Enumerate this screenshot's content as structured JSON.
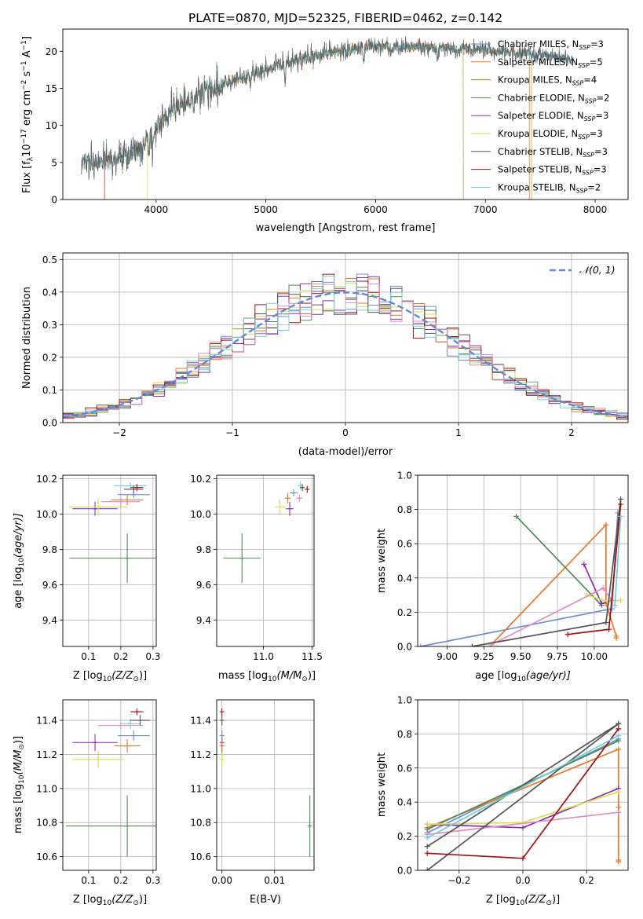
{
  "figure_title": "PLATE=0870, MJD=52325, FIBERID=0462, z=0.142",
  "colors": {
    "Chabrier MILES": "#6a8ed8",
    "Salpeter MILES": "#e8782a",
    "Kroupa MILES": "#a07a00",
    "Chabrier ELODIE": "#4f8a55",
    "Salpeter ELODIE": "#8a2fb0",
    "Kroupa ELODIE": "#d6e050",
    "Chabrier STELIB": "#555555",
    "Salpeter STELIB": "#a01010",
    "Kroupa STELIB": "#70d0d8",
    "pink": "#e48ac4",
    "normal": "#5b8bd8"
  },
  "chart_data": [
    {
      "id": "spectrum",
      "type": "line",
      "title": "PLATE=0870, MJD=52325, FIBERID=0462, z=0.142",
      "xlabel": "wavelength [Angstrom, rest frame]",
      "ylabel_main": "Flux [f",
      "ylabel_sub1": "λ",
      "ylabel_mid": "10",
      "ylabel_sup1": "−17",
      "ylabel_rest": " erg cm",
      "ylabel_sup2": "−2",
      "ylabel_s": " s",
      "ylabel_sup3": "−1",
      "ylabel_A": " A",
      "ylabel_sup4": "−1",
      "ylabel_end": "]",
      "xlim": [
        3150,
        8300
      ],
      "ylim": [
        0,
        23
      ],
      "xticks": [
        4000,
        5000,
        6000,
        7000,
        8000
      ],
      "yticks": [
        0,
        5,
        10,
        15,
        20
      ],
      "legend_position": "top-right",
      "legend": [
        {
          "main": "Chabrier MILES, N",
          "sub": "SSP",
          "tail": "=3",
          "color_key": "Chabrier MILES"
        },
        {
          "main": "Salpeter MILES, N",
          "sub": "SSP",
          "tail": "=5",
          "color_key": "Salpeter MILES"
        },
        {
          "main": "Kroupa MILES, N",
          "sub": "SSP",
          "tail": "=4",
          "color_key": "Kroupa MILES"
        },
        {
          "main": "Chabrier ELODIE, N",
          "sub": "SSP",
          "tail": "=2",
          "color_key": "Chabrier ELODIE"
        },
        {
          "main": "Salpeter ELODIE, N",
          "sub": "SSP",
          "tail": "=3",
          "color_key": "Salpeter ELODIE"
        },
        {
          "main": "Kroupa ELODIE, N",
          "sub": "SSP",
          "tail": "=3",
          "color_key": "Kroupa ELODIE"
        },
        {
          "main": "Chabrier STELIB, N",
          "sub": "SSP",
          "tail": "=3",
          "color_key": "Chabrier STELIB"
        },
        {
          "main": "Salpeter STELIB, N",
          "sub": "SSP",
          "tail": "=3",
          "color_key": "Salpeter STELIB"
        },
        {
          "main": "Kroupa STELIB, N",
          "sub": "SSP",
          "tail": "=2",
          "color_key": "Kroupa STELIB"
        }
      ],
      "continuum_knots": [
        [
          3320,
          5.0
        ],
        [
          3600,
          5.3
        ],
        [
          3800,
          6.0
        ],
        [
          3950,
          8.8
        ],
        [
          4100,
          11.5
        ],
        [
          4300,
          13.3
        ],
        [
          4600,
          15.6
        ],
        [
          5000,
          17.5
        ],
        [
          5200,
          18.5
        ],
        [
          5500,
          19.5
        ],
        [
          5800,
          20.3
        ],
        [
          6000,
          20.6
        ],
        [
          6500,
          20.5
        ],
        [
          7000,
          20.2
        ],
        [
          7500,
          19.5
        ],
        [
          7800,
          19.0
        ]
      ],
      "model_cutoffs": [
        {
          "color_key": "Salpeter MILES",
          "x_end": 7420
        },
        {
          "color_key": "Kroupa MILES",
          "x_end": 7400
        },
        {
          "color_key": "Kroupa ELODIE",
          "x_end": 6800
        },
        {
          "color_key": "Chabrier ELODIE",
          "x_end": 6800
        },
        {
          "color_key": "Salpeter ELODIE",
          "x_end": 6800
        }
      ],
      "model_starts": [
        {
          "color_key": "Kroupa ELODIE",
          "x_start": 3920
        },
        {
          "color_key": "Salpeter STELIB",
          "x_start": 3530
        }
      ]
    },
    {
      "id": "residuals",
      "type": "step",
      "xlabel": "(data-model)/error",
      "ylabel": "Normed distribution",
      "xlim": [
        -2.5,
        2.5
      ],
      "ylim": [
        0,
        0.52
      ],
      "xticks": [
        -2,
        -1,
        0,
        1,
        2
      ],
      "yticks": [
        0.0,
        0.1,
        0.2,
        0.3,
        0.4,
        0.5
      ],
      "grid": true,
      "legend_position": "top-right",
      "legend_label": "𝒩(0, 1)",
      "bin_width": 0.1
    },
    {
      "id": "z-age",
      "type": "errorbar",
      "xlabel": "Z [log",
      "xlabel_sub": "10",
      "xlabel_tail": "(Z/Z",
      "xlabel_sun": "⊙",
      "xlabel_end": ")]",
      "ylabel": "age  [log",
      "ylabel_sub": "10",
      "ylabel_tail": "(age/yr)]",
      "xlim": [
        0.02,
        0.31
      ],
      "ylim": [
        9.25,
        10.22
      ],
      "xticks": [
        0.1,
        0.2,
        0.3
      ],
      "yticks": [
        9.4,
        9.6,
        9.8,
        10.0,
        10.2
      ],
      "grid": true,
      "points": [
        {
          "color_key": "Chabrier ELODIE",
          "x": 0.22,
          "y": 9.75,
          "xerr": 0.18,
          "yerr": 0.14
        },
        {
          "color_key": "Salpeter ELODIE",
          "x": 0.12,
          "y": 10.03,
          "xerr": 0.07,
          "yerr": 0.04
        },
        {
          "color_key": "Kroupa ELODIE",
          "x": 0.13,
          "y": 10.04,
          "xerr": 0.09,
          "yerr": 0.05
        },
        {
          "color_key": "Salpeter MILES",
          "x": 0.22,
          "y": 10.08,
          "xerr": 0.05,
          "yerr": 0.03
        },
        {
          "color_key": "pink",
          "x": 0.2,
          "y": 10.07,
          "xerr": 0.06,
          "yerr": 0.03
        },
        {
          "color_key": "Chabrier MILES",
          "x": 0.24,
          "y": 10.11,
          "xerr": 0.05,
          "yerr": 0.02
        },
        {
          "color_key": "Kroupa STELIB",
          "x": 0.23,
          "y": 10.16,
          "xerr": 0.05,
          "yerr": 0.02
        },
        {
          "color_key": "Salpeter STELIB",
          "x": 0.25,
          "y": 10.15,
          "xerr": 0.02,
          "yerr": 0.02
        },
        {
          "color_key": "Chabrier STELIB",
          "x": 0.24,
          "y": 10.14,
          "xerr": 0.03,
          "yerr": 0.02
        }
      ]
    },
    {
      "id": "mass-age",
      "type": "errorbar",
      "xlabel": "mass [log",
      "xlabel_sub": "10",
      "xlabel_tail": "(M/M",
      "xlabel_sun": "⊙",
      "xlabel_end": ")]",
      "xlim": [
        10.52,
        11.52
      ],
      "ylim": [
        9.25,
        10.22
      ],
      "xticks": [
        11.0,
        11.5
      ],
      "yticks": [
        9.4,
        9.6,
        9.8,
        10.0,
        10.2
      ],
      "grid": true,
      "points": [
        {
          "color_key": "Chabrier ELODIE",
          "x": 10.78,
          "y": 9.75,
          "xerr": 0.19,
          "yerr": 0.14
        },
        {
          "color_key": "Kroupa ELODIE",
          "x": 11.17,
          "y": 10.04,
          "xerr": 0.05,
          "yerr": 0.04
        },
        {
          "color_key": "Salpeter ELODIE",
          "x": 11.27,
          "y": 10.03,
          "xerr": 0.04,
          "yerr": 0.04
        },
        {
          "color_key": "Salpeter MILES",
          "x": 11.25,
          "y": 10.09,
          "xerr": 0.03,
          "yerr": 0.03
        },
        {
          "color_key": "pink",
          "x": 11.37,
          "y": 10.09,
          "xerr": 0.03,
          "yerr": 0.02
        },
        {
          "color_key": "Chabrier MILES",
          "x": 11.31,
          "y": 10.12,
          "xerr": 0.04,
          "yerr": 0.02
        },
        {
          "color_key": "Kroupa STELIB",
          "x": 11.38,
          "y": 10.16,
          "xerr": 0.02,
          "yerr": 0.02
        },
        {
          "color_key": "Chabrier STELIB",
          "x": 11.4,
          "y": 10.15,
          "xerr": 0.02,
          "yerr": 0.02
        },
        {
          "color_key": "Salpeter STELIB",
          "x": 11.45,
          "y": 10.14,
          "xerr": 0.01,
          "yerr": 0.02
        }
      ]
    },
    {
      "id": "age-weight",
      "type": "line",
      "xlabel": "age  [log",
      "xlabel_sub": "10",
      "xlabel_tail": "(age/yr)]",
      "ylabel": "mass weight",
      "xlim": [
        8.8,
        10.23
      ],
      "ylim": [
        0,
        1.0
      ],
      "xticks": [
        9.0,
        9.25,
        9.5,
        9.75,
        10.0
      ],
      "yticks": [
        0.0,
        0.2,
        0.4,
        0.6,
        0.8,
        1.0
      ],
      "grid": true,
      "series": [
        {
          "color_key": "Chabrier MILES",
          "x": [
            8.82,
            10.12,
            10.16
          ],
          "y": [
            0.0,
            0.22,
            0.78
          ]
        },
        {
          "color_key": "Salpeter MILES",
          "x": [
            9.3,
            10.08,
            10.08,
            10.15,
            10.15
          ],
          "y": [
            0.01,
            0.71,
            0.25,
            0.06,
            0.05
          ]
        },
        {
          "color_key": "Chabrier ELODIE",
          "x": [
            9.47,
            10.05
          ],
          "y": [
            0.76,
            0.24
          ]
        },
        {
          "color_key": "Salpeter ELODIE",
          "x": [
            9.93,
            10.05,
            10.12
          ],
          "y": [
            0.48,
            0.25,
            0.27
          ]
        },
        {
          "color_key": "Kroupa ELODIE",
          "x": [
            9.95,
            10.1,
            10.18
          ],
          "y": [
            0.3,
            0.26,
            0.27
          ]
        },
        {
          "color_key": "pink",
          "x": [
            9.3,
            10.06,
            10.12
          ],
          "y": [
            0.01,
            0.34,
            0.27
          ]
        },
        {
          "color_key": "Chabrier STELIB",
          "x": [
            9.17,
            10.08,
            10.18
          ],
          "y": [
            0.0,
            0.14,
            0.86
          ]
        },
        {
          "color_key": "Salpeter STELIB",
          "x": [
            9.82,
            10.1,
            10.18
          ],
          "y": [
            0.07,
            0.1,
            0.83
          ]
        },
        {
          "color_key": "Kroupa STELIB",
          "x": [
            10.14,
            10.18
          ],
          "y": [
            0.24,
            0.76
          ]
        }
      ]
    },
    {
      "id": "z-mass",
      "type": "errorbar",
      "xlabel": "Z [log",
      "xlabel_sub": "10",
      "xlabel_tail": "(Z/Z",
      "xlabel_sun": "⊙",
      "xlabel_end": ")]",
      "ylabel": "mass [log",
      "ylabel_sub": "10",
      "ylabel_tail": "(M/M",
      "ylabel_sun": "⊙",
      "ylabel_end": ")]",
      "xlim": [
        0.02,
        0.31
      ],
      "ylim": [
        10.52,
        11.52
      ],
      "xticks": [
        0.1,
        0.2,
        0.3
      ],
      "yticks": [
        10.6,
        10.8,
        11.0,
        11.2,
        11.4
      ],
      "grid": true,
      "points": [
        {
          "color_key": "Chabrier ELODIE",
          "x": 0.22,
          "y": 10.78,
          "xerr": 0.19,
          "yerr": 0.18
        },
        {
          "color_key": "Salpeter ELODIE",
          "x": 0.12,
          "y": 11.27,
          "xerr": 0.07,
          "yerr": 0.05
        },
        {
          "color_key": "Kroupa ELODIE",
          "x": 0.13,
          "y": 11.17,
          "xerr": 0.08,
          "yerr": 0.05
        },
        {
          "color_key": "Salpeter MILES",
          "x": 0.22,
          "y": 11.25,
          "xerr": 0.04,
          "yerr": 0.04
        },
        {
          "color_key": "Chabrier MILES",
          "x": 0.24,
          "y": 11.31,
          "xerr": 0.05,
          "yerr": 0.03
        },
        {
          "color_key": "pink",
          "x": 0.2,
          "y": 11.37,
          "xerr": 0.07,
          "yerr": 0.02
        },
        {
          "color_key": "Kroupa STELIB",
          "x": 0.23,
          "y": 11.38,
          "xerr": 0.03,
          "yerr": 0.03
        },
        {
          "color_key": "Chabrier STELIB",
          "x": 0.26,
          "y": 11.4,
          "xerr": 0.03,
          "yerr": 0.03
        },
        {
          "color_key": "Salpeter STELIB",
          "x": 0.25,
          "y": 11.45,
          "xerr": 0.02,
          "yerr": 0.02
        }
      ]
    },
    {
      "id": "ebv-mass",
      "type": "errorbar",
      "xlabel": "E(B-V)",
      "xlim": [
        -0.001,
        0.0175
      ],
      "ylim": [
        10.52,
        11.52
      ],
      "xticks": [
        0.0,
        0.01
      ],
      "yticks": [
        10.6,
        10.8,
        11.0,
        11.2,
        11.4
      ],
      "grid": true,
      "points": [
        {
          "color_key": "Chabrier ELODIE",
          "x": 0.0167,
          "y": 10.78,
          "xerr": 0.0,
          "yerr": 0.18
        },
        {
          "color_key": "Kroupa ELODIE",
          "x": 0.0,
          "y": 11.17,
          "xerr": 0.0,
          "yerr": 0.05
        },
        {
          "color_key": "Salpeter ELODIE",
          "x": 0.0,
          "y": 11.27,
          "xerr": 0.0,
          "yerr": 0.05
        },
        {
          "color_key": "Salpeter MILES",
          "x": 0.0,
          "y": 11.25,
          "xerr": 0.0,
          "yerr": 0.04
        },
        {
          "color_key": "Chabrier MILES",
          "x": 0.0,
          "y": 11.31,
          "xerr": 0.0,
          "yerr": 0.03
        },
        {
          "color_key": "Chabrier STELIB",
          "x": 0.0,
          "y": 11.4,
          "xerr": 0.0,
          "yerr": 0.03
        },
        {
          "color_key": "Salpeter STELIB",
          "x": 0.0,
          "y": 11.45,
          "xerr": 0.0,
          "yerr": 0.02
        }
      ]
    },
    {
      "id": "z-weight",
      "type": "line",
      "xlabel": "Z [log",
      "xlabel_sub": "10",
      "xlabel_tail": "(Z/Z",
      "xlabel_sun": "⊙",
      "xlabel_end": ")]",
      "ylabel": "mass weight",
      "xlim": [
        -0.33,
        0.33
      ],
      "ylim": [
        0,
        1.0
      ],
      "xticks": [
        -0.2,
        0.0,
        0.2
      ],
      "yticks": [
        0.0,
        0.2,
        0.4,
        0.6,
        0.8,
        1.0
      ],
      "grid": true,
      "series": [
        {
          "color_key": "Chabrier MILES",
          "x": [
            -0.3,
            0.3
          ],
          "y": [
            0.22,
            0.77
          ]
        },
        {
          "color_key": "Salpeter MILES",
          "x": [
            -0.3,
            0.3,
            0.3,
            0.3,
            0.3
          ],
          "y": [
            0.25,
            0.71,
            0.37,
            0.06,
            0.05
          ]
        },
        {
          "color_key": "Chabrier ELODIE",
          "x": [
            -0.3,
            0.3
          ],
          "y": [
            0.24,
            0.76
          ]
        },
        {
          "color_key": "Salpeter ELODIE",
          "x": [
            -0.3,
            0.0,
            0.3
          ],
          "y": [
            0.27,
            0.25,
            0.48
          ]
        },
        {
          "color_key": "Kroupa ELODIE",
          "x": [
            -0.3,
            0.0,
            0.3
          ],
          "y": [
            0.27,
            0.28,
            0.46
          ]
        },
        {
          "color_key": "pink",
          "x": [
            -0.3,
            0.3
          ],
          "y": [
            0.21,
            0.34
          ]
        },
        {
          "color_key": "Chabrier STELIB",
          "x": [
            -0.3,
            0.3
          ],
          "y": [
            0.0,
            0.86
          ]
        },
        {
          "color_key": "Chabrier STELIB",
          "x": [
            -0.3,
            0.3
          ],
          "y": [
            0.14,
            0.86
          ]
        },
        {
          "color_key": "Salpeter STELIB",
          "x": [
            -0.3,
            0.0,
            0.3
          ],
          "y": [
            0.1,
            0.07,
            0.83
          ]
        },
        {
          "color_key": "Kroupa STELIB",
          "x": [
            -0.3,
            0.3
          ],
          "y": [
            0.19,
            0.79
          ]
        }
      ]
    }
  ]
}
